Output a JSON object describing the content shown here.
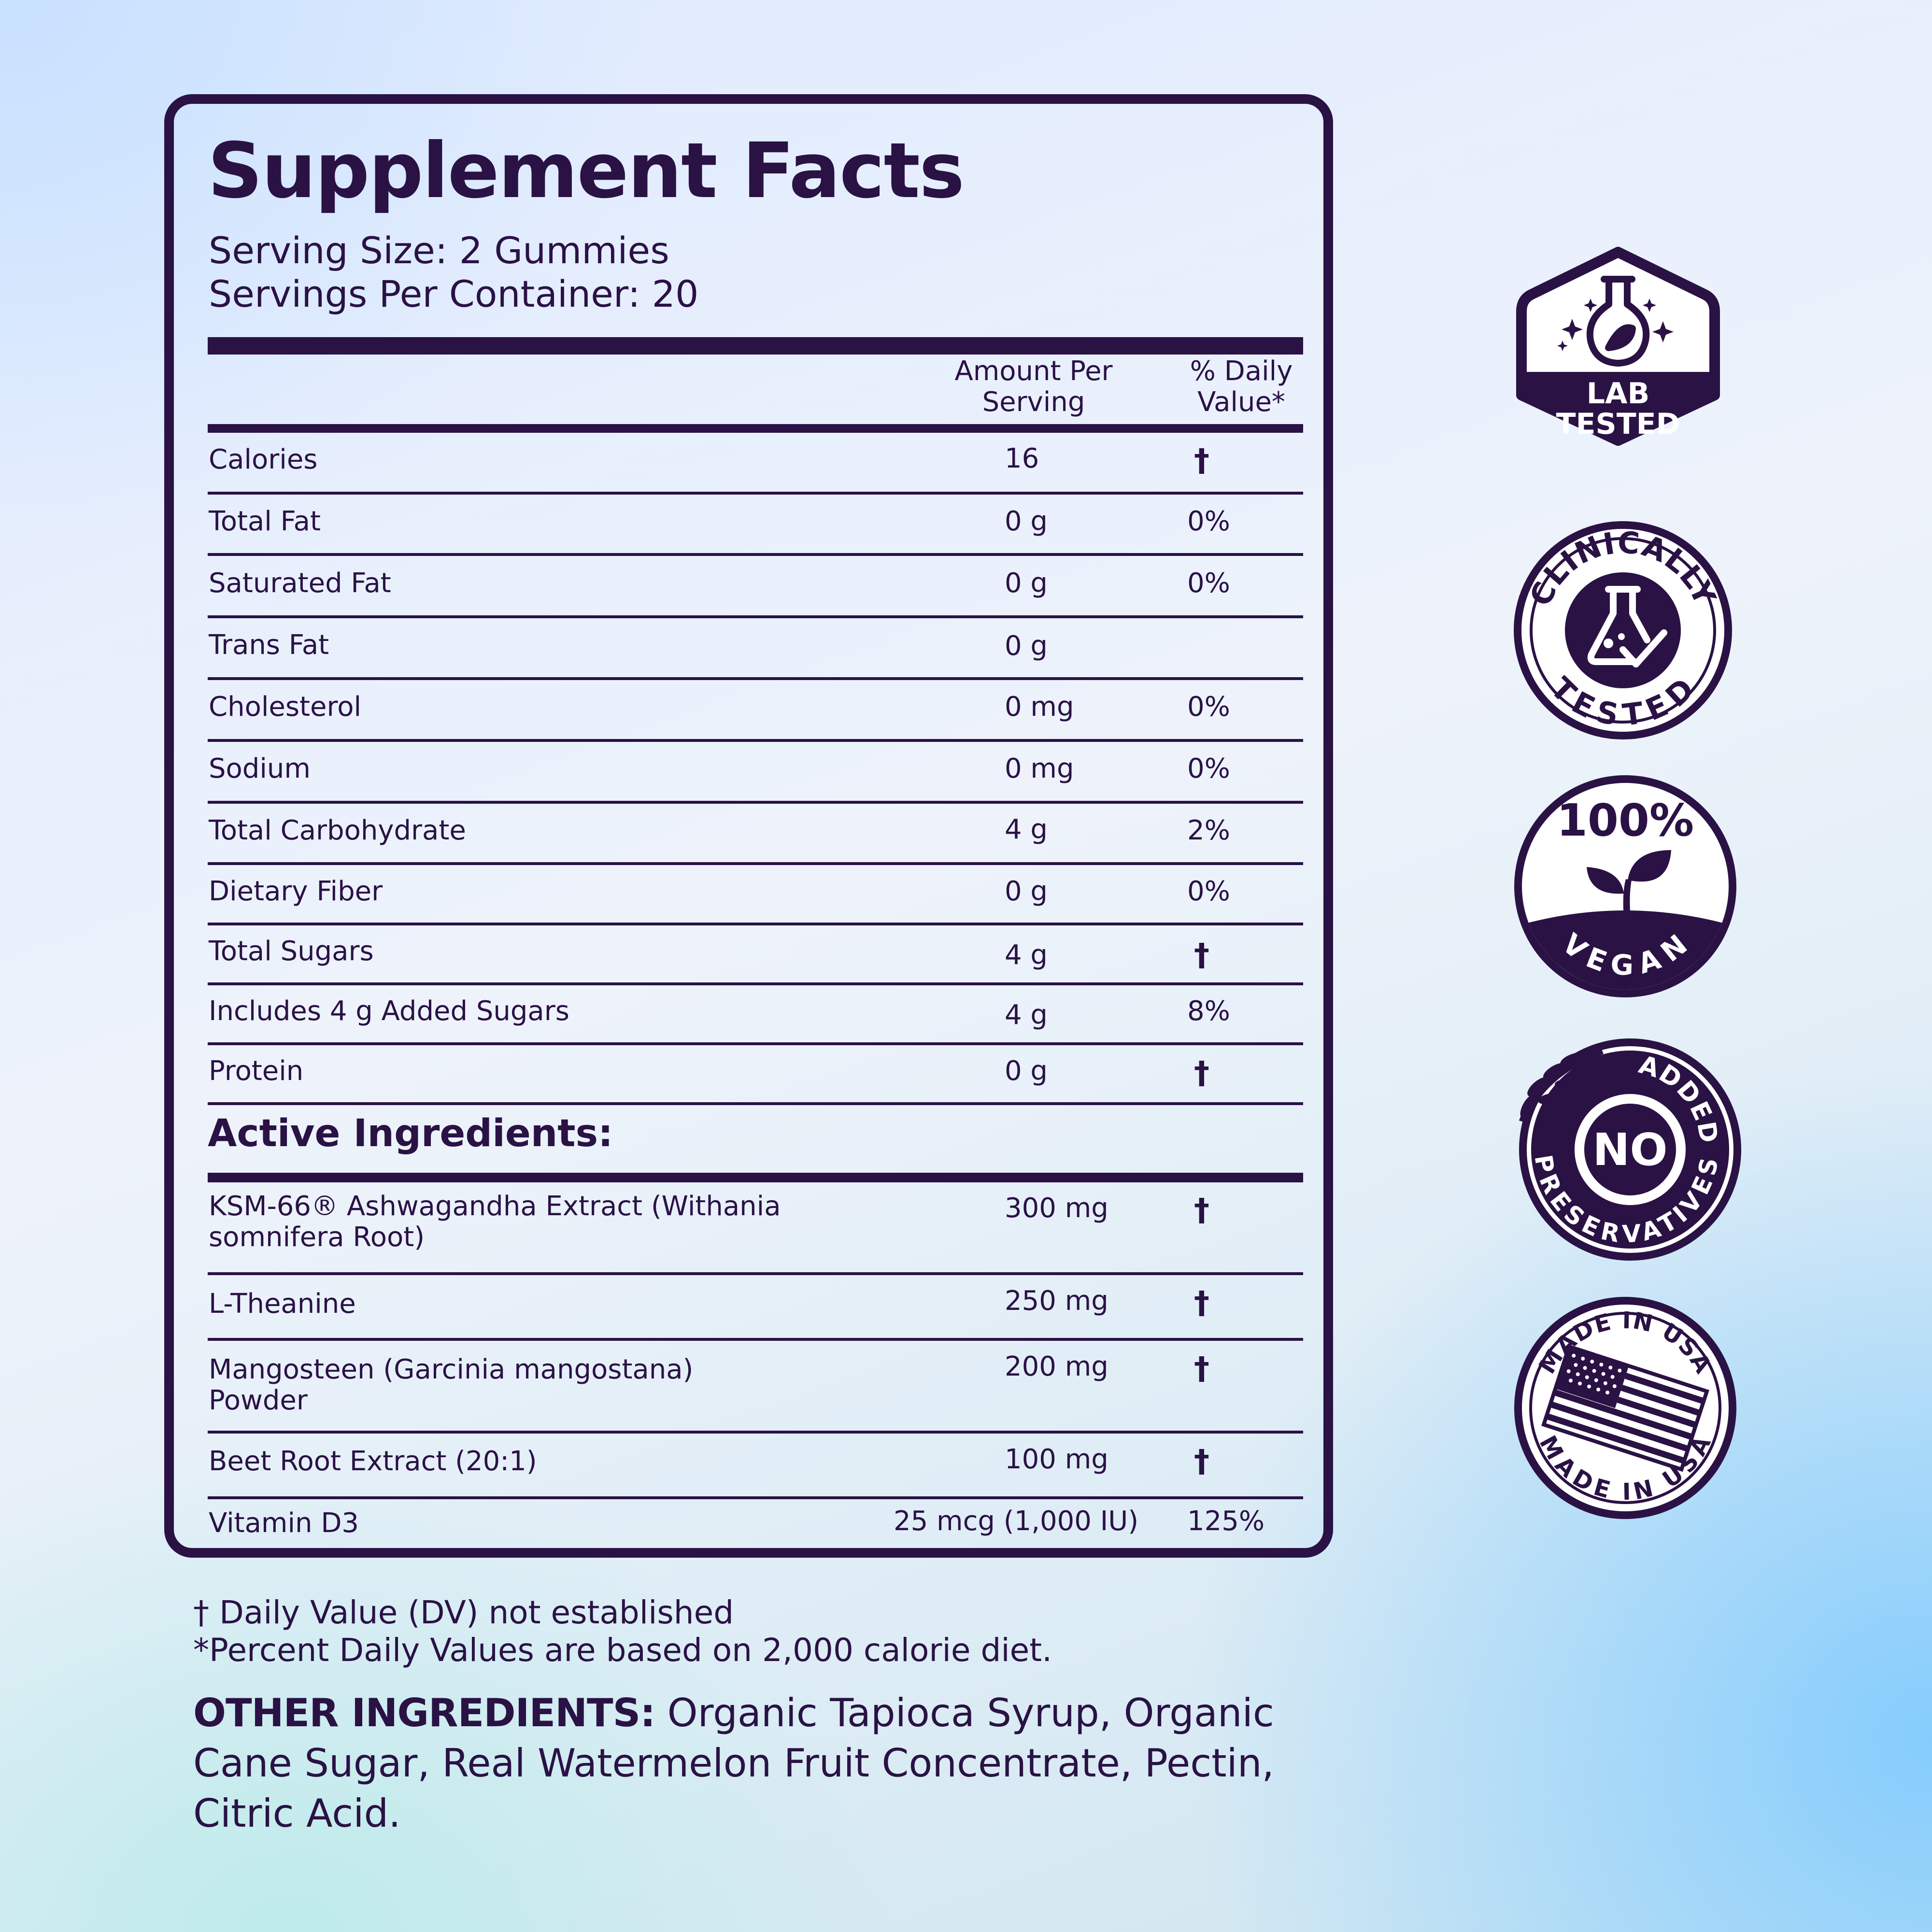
{
  "facts": {
    "title": "Supplement Facts",
    "serving_size": "Serving Size: 2 Gummies",
    "servings_per_container": "Servings Per Container: 20",
    "col_amount_1": "Amount Per",
    "col_amount_2": "Serving",
    "col_dv_1": "% Daily",
    "col_dv_2": "Value*",
    "nutrients": [
      {
        "name": "Calories",
        "amount": "16",
        "dv": "†"
      },
      {
        "name": "Total Fat",
        "amount": "0 g",
        "dv": "0%"
      },
      {
        "name": "Saturated Fat",
        "amount": "0 g",
        "dv": "0%"
      },
      {
        "name": "Trans Fat",
        "amount": "0 g",
        "dv": ""
      },
      {
        "name": "Cholesterol",
        "amount": "0 mg",
        "dv": "0%"
      },
      {
        "name": "Sodium",
        "amount": "0 mg",
        "dv": "0%"
      },
      {
        "name": "Total Carbohydrate",
        "amount": "4 g",
        "dv": "2%"
      },
      {
        "name": "Dietary Fiber",
        "amount": "0 g",
        "dv": "0%"
      },
      {
        "name": "Total Sugars",
        "amount": "4 g",
        "dv": "†"
      },
      {
        "name": "Includes 4 g Added Sugars",
        "amount": "4 g",
        "dv": "8%"
      },
      {
        "name": "Protein",
        "amount": "0 g",
        "dv": "†"
      }
    ],
    "active_title": "Active Ingredients:",
    "actives": [
      {
        "name_1": "KSM-66® Ashwagandha Extract (Withania",
        "name_2": "somnifera Root)",
        "amount": "300 mg",
        "dv": "†"
      },
      {
        "name_1": "L-Theanine",
        "amount": "250 mg",
        "dv": "†"
      },
      {
        "name_1": "Mangosteen (Garcinia mangostana)",
        "name_2": "Powder",
        "amount": "200 mg",
        "dv": "†"
      },
      {
        "name_1": "Beet Root Extract (20:1)",
        "amount": "100 mg",
        "dv": "†"
      },
      {
        "name_1": "Vitamin D3",
        "amount": "25 mcg (1,000 IU)",
        "dv": "125%"
      }
    ]
  },
  "footnotes": {
    "dagger_note": "† Daily Value (DV) not established",
    "percent_note": "*Percent Daily Values are based on 2,000 calorie diet."
  },
  "other_ingredients": {
    "label": "OTHER INGREDIENTS:",
    "text": "Organic Tapioca Syrup, Organic Cane Sugar, Real Watermelon Fruit Concentrate, Pectin, Citric Acid."
  },
  "badges": {
    "lab_tested_1": "LAB",
    "lab_tested_2": "TESTED",
    "clinically_top": "CLINICALLY",
    "clinically_bottom": "TESTED",
    "vegan_top": "100%",
    "vegan_bottom": "VEGAN",
    "no_pres_big": "NO",
    "no_pres_top": "ADDED",
    "no_pres_bottom": "PRESERVATIVES",
    "usa_top": "MADE IN USA",
    "usa_bottom": "MADE IN USA",
    "icons": [
      "flask-icon",
      "beaker-check-icon",
      "sprout-icon",
      "wheat-icon",
      "flag-icon"
    ]
  },
  "colors": {
    "ink": "#2a1245"
  }
}
